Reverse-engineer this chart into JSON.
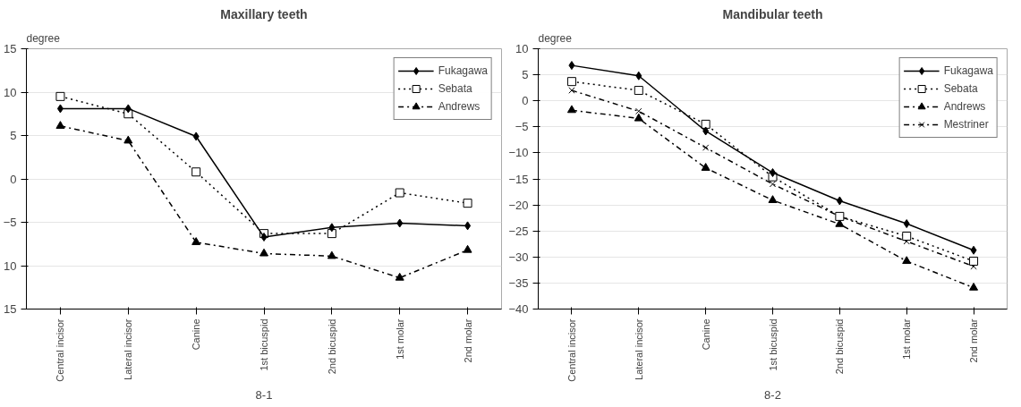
{
  "chart_data": [
    {
      "type": "line",
      "title": "Maxillary teeth",
      "ylabel": "degree",
      "annotations": [
        "8-1"
      ],
      "categories": [
        "Central incisor",
        "Lateral incisor",
        "Canine",
        "1st bicuspid",
        "2nd bicuspid",
        "1st molar",
        "2nd molar"
      ],
      "ylim": [
        -15,
        15
      ],
      "yticks": [
        {
          "value": -15,
          "label": "15"
        },
        {
          "value": -10,
          "label": "10"
        },
        -5,
        0,
        5,
        10,
        15
      ],
      "grid": "y",
      "legend": "top right",
      "series": [
        {
          "name": "Fukagawa",
          "color": "#000000",
          "marker": "diamond",
          "line_style": "solid",
          "values": [
            8.1,
            8.1,
            4.9,
            -6.7,
            -5.6,
            -5.1,
            -5.4
          ]
        },
        {
          "name": "Sebata",
          "color": "#000000",
          "marker": "square",
          "line_style": "dotted",
          "values": [
            9.5,
            7.5,
            0.8,
            -6.3,
            -6.3,
            -1.6,
            -2.8
          ]
        },
        {
          "name": "Andrews",
          "color": "#000000",
          "marker": "triangle",
          "line_style": "dashed",
          "values": [
            6.1,
            4.4,
            -7.3,
            -8.6,
            -8.9,
            -11.4,
            -8.2
          ]
        }
      ]
    },
    {
      "type": "line",
      "title": "Mandibular teeth",
      "ylabel": "degree",
      "annotations": [
        "8-2"
      ],
      "categories": [
        "Central incisor",
        "Lateral incisor",
        "Canine",
        "1st bicuspid",
        "2nd bicuspid",
        "1st molar",
        "2nd molar"
      ],
      "ylim": [
        -40,
        10
      ],
      "yticks": [
        -40,
        -35,
        -30,
        -25,
        -20,
        -15,
        -10,
        -5,
        0,
        5,
        10
      ],
      "grid": "y",
      "legend": "top right",
      "series": [
        {
          "name": "Fukagawa",
          "color": "#000000",
          "marker": "diamond",
          "line_style": "solid",
          "values": [
            6.8,
            4.8,
            -5.8,
            -13.8,
            -19.2,
            -23.6,
            -28.7
          ]
        },
        {
          "name": "Sebata",
          "color": "#000000",
          "marker": "square",
          "line_style": "dotted",
          "values": [
            3.7,
            2.0,
            -4.5,
            -14.6,
            -22.2,
            -26.0,
            -30.8
          ]
        },
        {
          "name": "Andrews",
          "color": "#000000",
          "marker": "triangle",
          "line_style": "dashed",
          "values": [
            -1.8,
            -3.4,
            -12.9,
            -19.1,
            -23.7,
            -30.8,
            -35.9
          ]
        },
        {
          "name": "Mestriner",
          "color": "#000000",
          "marker": "cross",
          "line_style": "dashed",
          "values": [
            2.0,
            -2.0,
            -9.0,
            -16.0,
            -22.2,
            -27.0,
            -31.8
          ]
        }
      ]
    }
  ]
}
